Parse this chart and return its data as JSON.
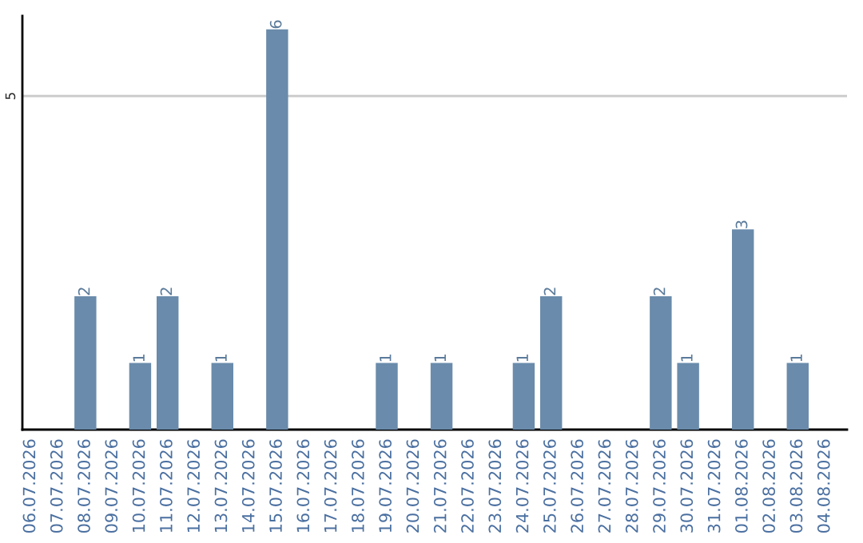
{
  "chart_data": {
    "type": "bar",
    "categories": [
      "06.07.2026",
      "07.07.2026",
      "08.07.2026",
      "09.07.2026",
      "10.07.2026",
      "11.07.2026",
      "12.07.2026",
      "13.07.2026",
      "14.07.2026",
      "15.07.2026",
      "16.07.2026",
      "17.07.2026",
      "18.07.2026",
      "19.07.2026",
      "20.07.2026",
      "21.07.2026",
      "22.07.2026",
      "23.07.2026",
      "24.07.2026",
      "25.07.2026",
      "26.07.2026",
      "27.07.2026",
      "28.07.2026",
      "29.07.2026",
      "30.07.2026",
      "31.07.2026",
      "01.08.2026",
      "02.08.2026",
      "03.08.2026",
      "04.08.2026"
    ],
    "values": [
      0,
      0,
      2,
      0,
      1,
      2,
      0,
      1,
      0,
      6,
      0,
      0,
      0,
      1,
      0,
      1,
      0,
      0,
      1,
      2,
      0,
      0,
      0,
      2,
      1,
      0,
      3,
      0,
      1,
      0
    ],
    "value_labels": [
      null,
      null,
      "2",
      null,
      "1",
      "2",
      null,
      "1",
      null,
      "6",
      null,
      null,
      null,
      "1",
      null,
      "1",
      null,
      null,
      "1",
      "2",
      null,
      null,
      null,
      "2",
      "1",
      null,
      "3",
      null,
      "1",
      null
    ],
    "color": "#6a8bab",
    "ylim": [
      0,
      6.2
    ],
    "yticks": [
      5
    ],
    "grid": "y",
    "legend": false
  }
}
